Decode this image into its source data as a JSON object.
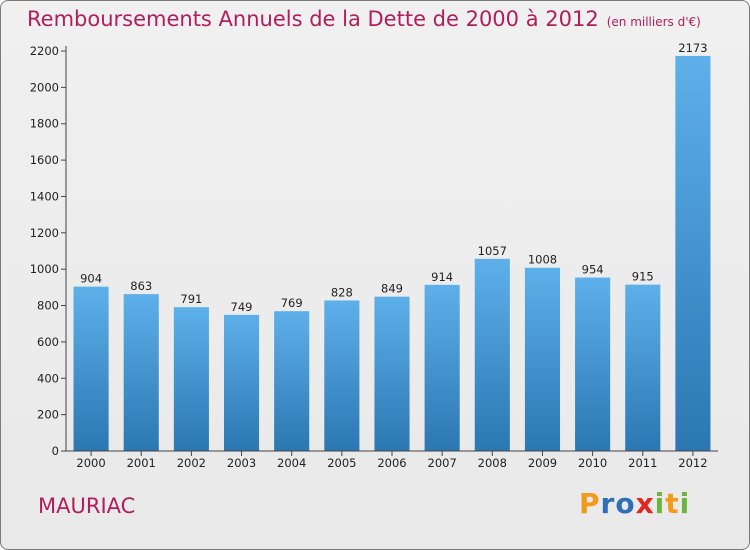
{
  "title": "Remboursements Annuels de la Dette de 2000 à 2012",
  "subtitle": "(en milliers d'€)",
  "place": "MAURIAC",
  "brand": {
    "letters": [
      "P",
      "r",
      "o",
      "x",
      "i",
      "t",
      "i"
    ],
    "colors": [
      "#f29a1a",
      "#2f6fb5",
      "#2f6fb5",
      "#e2261d",
      "#6cb33f",
      "#f29a1a",
      "#6cb33f"
    ]
  },
  "colors": {
    "bar_light": "#5eb0ea",
    "bar_dark": "#2b77b2",
    "title": "#b01e5b"
  },
  "chart_data": {
    "type": "bar",
    "categories": [
      "2000",
      "2001",
      "2002",
      "2003",
      "2004",
      "2005",
      "2006",
      "2007",
      "2008",
      "2009",
      "2010",
      "2011",
      "2012"
    ],
    "values": [
      904,
      863,
      791,
      749,
      769,
      828,
      849,
      914,
      1057,
      1008,
      954,
      915,
      2173
    ],
    "data_labels": [
      "904",
      "863",
      "791",
      "749",
      "769",
      "828",
      "849",
      "914",
      "1057",
      "1008",
      "954",
      "915",
      "2173"
    ],
    "yticks": [
      0,
      200,
      400,
      600,
      800,
      1000,
      1200,
      1400,
      1600,
      1800,
      2000,
      2200
    ],
    "ylim": [
      0,
      2200
    ],
    "grid": false,
    "legend": "none"
  }
}
